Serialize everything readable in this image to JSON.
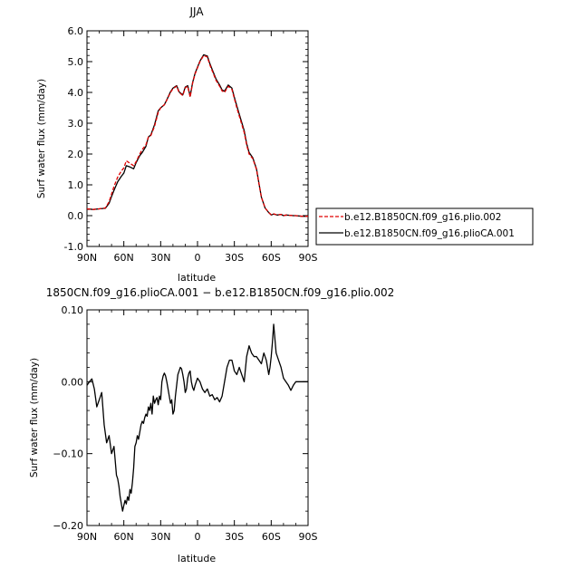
{
  "chart_data": [
    {
      "type": "line",
      "title": "JJA",
      "ylabel": "Surf water flux (mm/day)",
      "xlabel": "latitude",
      "xlim": [
        90,
        -90
      ],
      "ylim": [
        -1.0,
        6.0
      ],
      "xticks": [
        90,
        60,
        30,
        0,
        -30,
        -60,
        -90
      ],
      "xtick_labels": [
        "90N",
        "60N",
        "30N",
        "0",
        "30S",
        "60S",
        "90S"
      ],
      "yticks": [
        -1.0,
        0.0,
        1.0,
        2.0,
        3.0,
        4.0,
        5.0,
        6.0
      ],
      "ytick_labels": [
        "-1.0",
        "0.0",
        "1.0",
        "2.0",
        "3.0",
        "4.0",
        "5.0",
        "6.0"
      ],
      "legend_position": "right",
      "series": [
        {
          "name": "b.e12.B1850CN.f09_g16.plio.002",
          "color": "#e00000",
          "dash": "dashed",
          "x": [
            90,
            85,
            80,
            75,
            72,
            70,
            68,
            65,
            62,
            60,
            58,
            55,
            52,
            50,
            47,
            45,
            42,
            40,
            38,
            35,
            32,
            30,
            27,
            25,
            22,
            20,
            17,
            15,
            12,
            10,
            8,
            6,
            4,
            2,
            0,
            -2,
            -5,
            -8,
            -10,
            -12,
            -15,
            -18,
            -20,
            -22,
            -25,
            -28,
            -30,
            -32,
            -35,
            -38,
            -40,
            -42,
            -45,
            -48,
            -50,
            -52,
            -55,
            -58,
            -60,
            -62,
            -65,
            -68,
            -70,
            -72,
            -75,
            -78,
            -80,
            -85,
            -90
          ],
          "values": [
            0.22,
            0.2,
            0.22,
            0.25,
            0.45,
            0.7,
            0.95,
            1.25,
            1.45,
            1.55,
            1.78,
            1.7,
            1.62,
            1.75,
            2.0,
            2.15,
            2.3,
            2.55,
            2.6,
            2.9,
            3.35,
            3.5,
            3.6,
            3.75,
            4.0,
            4.12,
            4.2,
            4.0,
            3.9,
            4.15,
            4.2,
            3.85,
            4.3,
            4.6,
            4.8,
            5.0,
            5.2,
            5.15,
            4.9,
            4.7,
            4.4,
            4.2,
            4.05,
            4.0,
            4.2,
            4.1,
            3.8,
            3.5,
            3.1,
            2.7,
            2.3,
            2.0,
            1.85,
            1.5,
            1.05,
            0.6,
            0.25,
            0.1,
            0.03,
            0.06,
            0.02,
            0.04,
            0.0,
            0.02,
            0.01,
            0.0,
            0.0,
            -0.02,
            -0.02
          ]
        },
        {
          "name": "b.e12.B1850CN.f09_g16.plioCA.001",
          "color": "#000000",
          "dash": "solid",
          "x": [
            90,
            85,
            80,
            75,
            72,
            70,
            68,
            65,
            62,
            60,
            58,
            55,
            52,
            50,
            47,
            45,
            42,
            40,
            38,
            35,
            32,
            30,
            27,
            25,
            22,
            20,
            17,
            15,
            12,
            10,
            8,
            6,
            4,
            2,
            0,
            -2,
            -5,
            -8,
            -10,
            -12,
            -15,
            -18,
            -20,
            -22,
            -25,
            -28,
            -30,
            -32,
            -35,
            -38,
            -40,
            -42,
            -45,
            -48,
            -50,
            -52,
            -55,
            -58,
            -60,
            -62,
            -65,
            -68,
            -70,
            -72,
            -75,
            -78,
            -80,
            -85,
            -90
          ],
          "values": [
            0.22,
            0.2,
            0.22,
            0.24,
            0.4,
            0.62,
            0.82,
            1.1,
            1.28,
            1.38,
            1.62,
            1.58,
            1.52,
            1.72,
            1.95,
            2.05,
            2.25,
            2.55,
            2.62,
            2.95,
            3.4,
            3.5,
            3.6,
            3.76,
            4.02,
            4.14,
            4.22,
            4.02,
            3.92,
            4.17,
            4.22,
            3.88,
            4.32,
            4.62,
            4.82,
            5.02,
            5.22,
            5.18,
            4.94,
            4.74,
            4.44,
            4.24,
            4.08,
            4.04,
            4.24,
            4.14,
            3.84,
            3.56,
            3.16,
            2.76,
            2.34,
            2.05,
            1.88,
            1.52,
            1.05,
            0.6,
            0.25,
            0.1,
            0.02,
            0.05,
            0.02,
            0.04,
            0.0,
            0.02,
            0.01,
            0.0,
            0.0,
            -0.02,
            -0.02
          ]
        }
      ]
    },
    {
      "type": "line",
      "title": "1850CN.f09_g16.plioCA.001 − b.e12.B1850CN.f09_g16.plio.002",
      "ylabel": "Surf water flux (mm/day)",
      "xlabel": "latitude",
      "xlim": [
        90,
        -90
      ],
      "ylim": [
        -0.2,
        0.1
      ],
      "xticks": [
        90,
        60,
        30,
        0,
        -30,
        -60,
        -90
      ],
      "xtick_labels": [
        "90N",
        "60N",
        "30N",
        "0",
        "30S",
        "60S",
        "90S"
      ],
      "yticks": [
        -0.2,
        -0.1,
        0.0,
        0.1
      ],
      "ytick_labels": [
        "−0.20",
        "−0.10",
        "0.00",
        "0.10"
      ],
      "series": [
        {
          "color": "#000000",
          "x": [
            90,
            88,
            86,
            84,
            82,
            80,
            78,
            76,
            74,
            72,
            70,
            68,
            66,
            65,
            64,
            63,
            62,
            61,
            60,
            59,
            58,
            57,
            56,
            55,
            54,
            53,
            52,
            51,
            50,
            49,
            48,
            47,
            46,
            45,
            44,
            43,
            42,
            41,
            40,
            39,
            38,
            37,
            36,
            35,
            34,
            33,
            32,
            31,
            30,
            29,
            28,
            27,
            26,
            25,
            24,
            23,
            22,
            21,
            20,
            19,
            18,
            17,
            16,
            15,
            14,
            13,
            12,
            11,
            10,
            9,
            8,
            7,
            6,
            5,
            4,
            3,
            2,
            1,
            0,
            -2,
            -4,
            -6,
            -8,
            -10,
            -12,
            -14,
            -16,
            -18,
            -20,
            -22,
            -24,
            -26,
            -28,
            -30,
            -32,
            -34,
            -36,
            -38,
            -40,
            -42,
            -44,
            -46,
            -48,
            -50,
            -52,
            -54,
            -56,
            -58,
            -59,
            -60,
            -61,
            -62,
            -63,
            -64,
            -66,
            -68,
            -70,
            -72,
            -74,
            -76,
            -78,
            -80,
            -85,
            -90
          ],
          "values": [
            -0.005,
            0.0,
            0.004,
            -0.01,
            -0.035,
            -0.025,
            -0.015,
            -0.06,
            -0.085,
            -0.075,
            -0.1,
            -0.09,
            -0.13,
            -0.135,
            -0.145,
            -0.16,
            -0.17,
            -0.18,
            -0.172,
            -0.165,
            -0.17,
            -0.16,
            -0.165,
            -0.15,
            -0.155,
            -0.14,
            -0.12,
            -0.09,
            -0.085,
            -0.075,
            -0.08,
            -0.07,
            -0.06,
            -0.055,
            -0.058,
            -0.05,
            -0.045,
            -0.048,
            -0.035,
            -0.04,
            -0.03,
            -0.045,
            -0.02,
            -0.03,
            -0.025,
            -0.022,
            -0.032,
            -0.02,
            -0.025,
            0.0,
            0.008,
            0.012,
            0.008,
            0.0,
            -0.01,
            -0.02,
            -0.03,
            -0.025,
            -0.045,
            -0.04,
            -0.02,
            -0.005,
            0.01,
            0.015,
            0.02,
            0.018,
            0.01,
            0.0,
            -0.015,
            -0.01,
            0.005,
            0.012,
            0.015,
            0.0,
            -0.008,
            -0.012,
            -0.005,
            0.0,
            0.005,
            0.0,
            -0.01,
            -0.015,
            -0.01,
            -0.02,
            -0.018,
            -0.025,
            -0.022,
            -0.028,
            -0.02,
            0.0,
            0.02,
            0.03,
            0.03,
            0.015,
            0.01,
            0.02,
            0.01,
            0.0,
            0.035,
            0.05,
            0.04,
            0.035,
            0.035,
            0.03,
            0.025,
            0.04,
            0.03,
            0.01,
            0.02,
            0.035,
            0.055,
            0.08,
            0.06,
            0.04,
            0.03,
            0.02,
            0.005,
            0.0,
            -0.005,
            -0.012,
            -0.005,
            0.0,
            0.0,
            0.0
          ]
        }
      ]
    }
  ]
}
